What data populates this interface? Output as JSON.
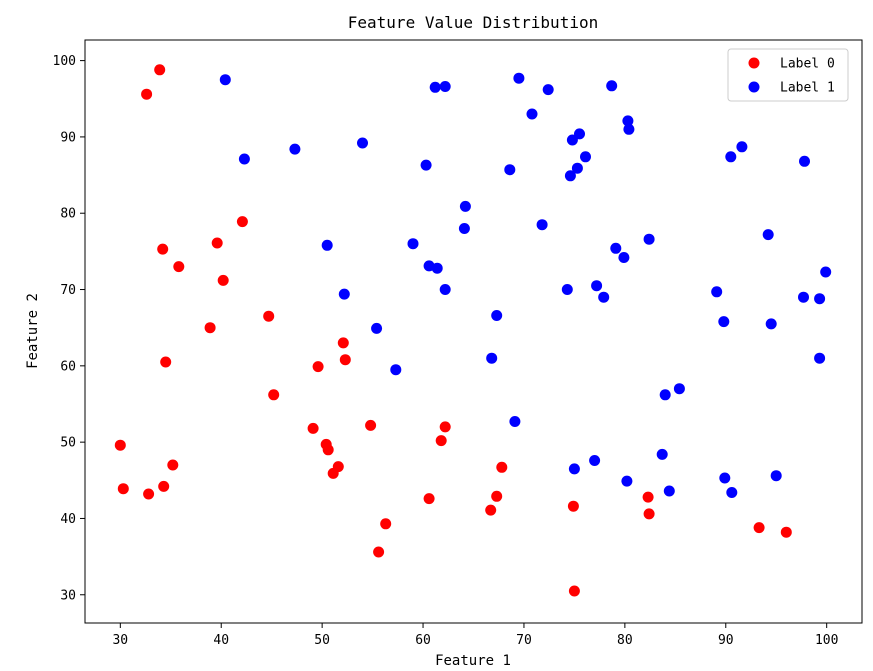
{
  "chart_data": {
    "type": "scatter",
    "title": "Feature Value Distribution",
    "xlabel": "Feature 1",
    "ylabel": "Feature 2",
    "xlim": [
      26.5,
      103.5
    ],
    "ylim": [
      26.3,
      102.7
    ],
    "xticks": [
      30,
      40,
      50,
      60,
      70,
      80,
      90,
      100
    ],
    "yticks": [
      30,
      40,
      50,
      60,
      70,
      80,
      90,
      100
    ],
    "grid": false,
    "legend_position": "top-right",
    "series": [
      {
        "name": "Label 0",
        "color": "#ff0000",
        "points": [
          [
            30.0,
            49.6
          ],
          [
            30.3,
            43.9
          ],
          [
            32.6,
            95.6
          ],
          [
            32.8,
            43.2
          ],
          [
            33.9,
            98.8
          ],
          [
            34.2,
            75.3
          ],
          [
            34.3,
            44.2
          ],
          [
            34.5,
            60.5
          ],
          [
            35.2,
            47.0
          ],
          [
            35.8,
            73.0
          ],
          [
            38.9,
            65.0
          ],
          [
            39.6,
            76.1
          ],
          [
            40.2,
            71.2
          ],
          [
            42.1,
            78.9
          ],
          [
            44.7,
            66.5
          ],
          [
            45.2,
            56.2
          ],
          [
            49.1,
            51.8
          ],
          [
            49.6,
            59.9
          ],
          [
            50.4,
            49.7
          ],
          [
            50.6,
            49.0
          ],
          [
            51.1,
            45.9
          ],
          [
            51.6,
            46.8
          ],
          [
            52.1,
            63.0
          ],
          [
            52.3,
            60.8
          ],
          [
            54.8,
            52.2
          ],
          [
            55.6,
            35.6
          ],
          [
            56.3,
            39.3
          ],
          [
            60.6,
            42.6
          ],
          [
            61.8,
            50.2
          ],
          [
            62.2,
            52.0
          ],
          [
            66.7,
            41.1
          ],
          [
            67.3,
            42.9
          ],
          [
            67.8,
            46.7
          ],
          [
            74.9,
            41.6
          ],
          [
            75.0,
            30.5
          ],
          [
            82.3,
            42.8
          ],
          [
            82.4,
            40.6
          ],
          [
            93.3,
            38.8
          ],
          [
            96.0,
            38.2
          ]
        ]
      },
      {
        "name": "Label 1",
        "color": "#0000ff",
        "points": [
          [
            40.4,
            97.5
          ],
          [
            42.3,
            87.1
          ],
          [
            47.3,
            88.4
          ],
          [
            50.5,
            75.8
          ],
          [
            52.2,
            69.4
          ],
          [
            54.0,
            89.2
          ],
          [
            55.4,
            64.9
          ],
          [
            57.3,
            59.5
          ],
          [
            59.0,
            76.0
          ],
          [
            60.3,
            86.3
          ],
          [
            60.6,
            73.1
          ],
          [
            61.2,
            96.5
          ],
          [
            61.4,
            72.8
          ],
          [
            62.2,
            96.6
          ],
          [
            62.2,
            70.0
          ],
          [
            64.1,
            78.0
          ],
          [
            64.2,
            80.9
          ],
          [
            66.8,
            61.0
          ],
          [
            67.3,
            66.6
          ],
          [
            68.6,
            85.7
          ],
          [
            69.1,
            52.7
          ],
          [
            69.5,
            97.7
          ],
          [
            70.8,
            93.0
          ],
          [
            71.8,
            78.5
          ],
          [
            72.4,
            96.2
          ],
          [
            74.3,
            70.0
          ],
          [
            74.6,
            84.9
          ],
          [
            74.8,
            89.6
          ],
          [
            75.0,
            46.5
          ],
          [
            75.3,
            85.9
          ],
          [
            75.5,
            90.4
          ],
          [
            76.1,
            87.4
          ],
          [
            77.0,
            47.6
          ],
          [
            77.2,
            70.5
          ],
          [
            77.9,
            69.0
          ],
          [
            78.7,
            96.7
          ],
          [
            79.1,
            75.4
          ],
          [
            79.9,
            74.2
          ],
          [
            80.2,
            44.9
          ],
          [
            80.3,
            92.1
          ],
          [
            80.4,
            91.0
          ],
          [
            82.4,
            76.6
          ],
          [
            83.7,
            48.4
          ],
          [
            84.0,
            56.2
          ],
          [
            84.4,
            43.6
          ],
          [
            85.4,
            57.0
          ],
          [
            89.1,
            69.7
          ],
          [
            89.8,
            65.8
          ],
          [
            89.9,
            45.3
          ],
          [
            90.5,
            87.4
          ],
          [
            90.6,
            43.4
          ],
          [
            91.6,
            88.7
          ],
          [
            94.2,
            77.2
          ],
          [
            94.5,
            65.5
          ],
          [
            95.0,
            45.6
          ],
          [
            97.7,
            69.0
          ],
          [
            97.8,
            86.8
          ],
          [
            99.3,
            68.8
          ],
          [
            99.3,
            61.0
          ],
          [
            99.9,
            72.3
          ]
        ]
      }
    ]
  }
}
